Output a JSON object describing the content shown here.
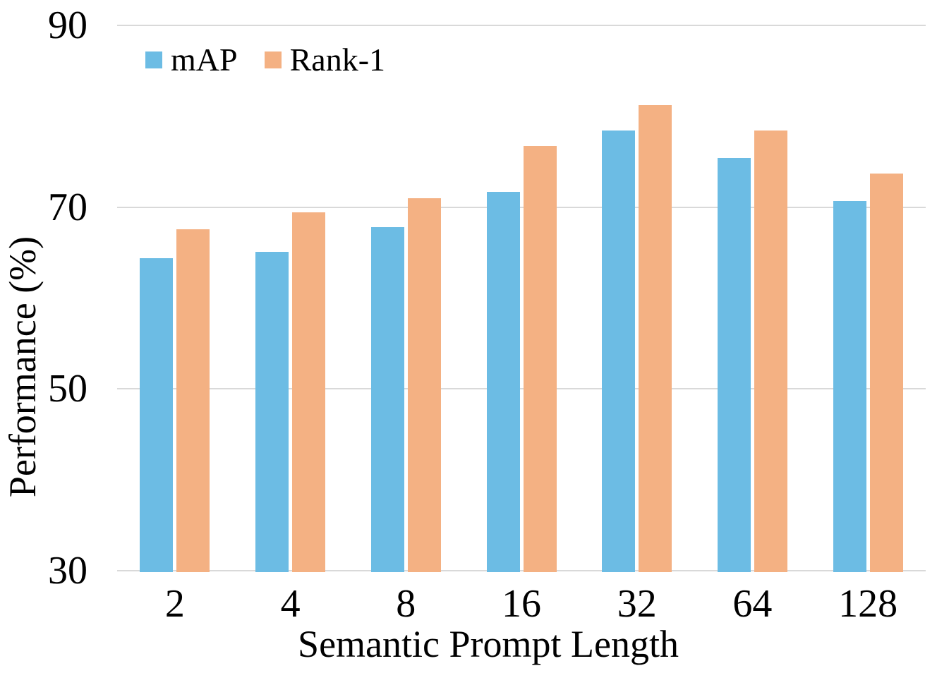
{
  "chart_data": {
    "type": "bar",
    "title": "",
    "xlabel": "Semantic Prompt Length",
    "ylabel": "Performance (%)",
    "categories": [
      "2",
      "4",
      "8",
      "16",
      "32",
      "64",
      "128"
    ],
    "series": [
      {
        "name": "mAP",
        "color": "#6CBCE4",
        "values": [
          64.4,
          65.1,
          67.8,
          71.7,
          78.4,
          75.4,
          70.7
        ]
      },
      {
        "name": "Rank-1",
        "color": "#F4B183",
        "values": [
          67.6,
          69.4,
          71.0,
          76.7,
          81.2,
          78.4,
          73.7
        ]
      }
    ],
    "ylim": [
      30,
      90
    ],
    "yticks": [
      30,
      50,
      70,
      90
    ],
    "grid": true,
    "gridline_color": "#D9D9D9",
    "legend_position": "top-left",
    "text_color": "#000000",
    "background": "#FFFFFF"
  }
}
